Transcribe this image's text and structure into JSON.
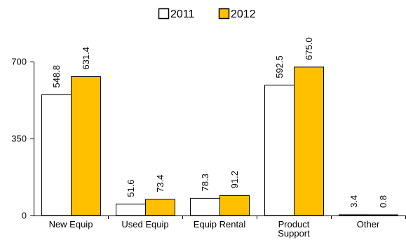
{
  "chart_data": {
    "type": "bar",
    "categories": [
      [
        "New Equip"
      ],
      [
        "Used Equip"
      ],
      [
        "Equip Rental"
      ],
      [
        "Product",
        "Support"
      ],
      [
        "Other"
      ]
    ],
    "series": [
      {
        "name": "2011",
        "values": [
          548.8,
          51.6,
          78.3,
          592.5,
          3.4
        ],
        "labels": [
          "548.8",
          "51.6",
          "78.3",
          "592.5",
          "3.4"
        ],
        "color": "#ffffff"
      },
      {
        "name": "2012",
        "values": [
          631.4,
          73.4,
          91.2,
          675.0,
          0.8
        ],
        "labels": [
          "631.4",
          "73.4",
          "91.2",
          "675.0",
          "0.8"
        ],
        "color": "#ffc000"
      }
    ],
    "ylim": [
      0,
      700
    ],
    "yticks": [
      0,
      350,
      700
    ],
    "ytick_labels": [
      "0",
      "350",
      "700"
    ],
    "legend_position": "top-center",
    "grid": false,
    "bar_outline": "#000000"
  }
}
